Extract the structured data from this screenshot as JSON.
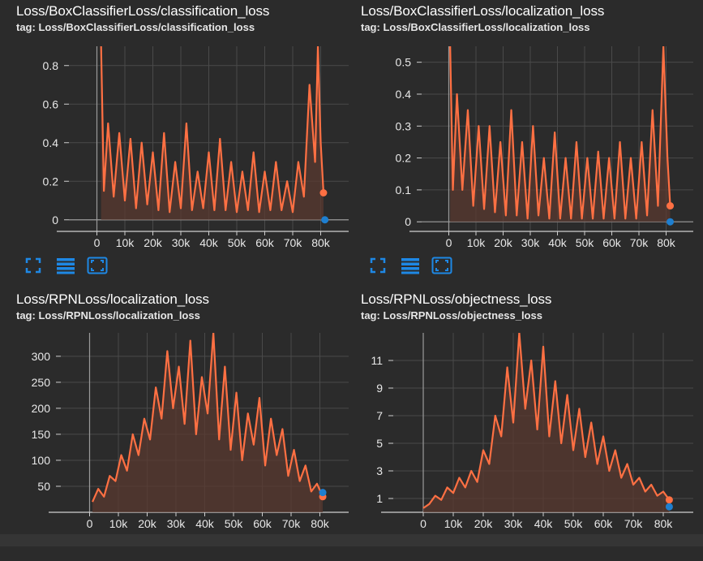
{
  "colors": {
    "background": "#2b2b2b",
    "series_smoothed": "#ff7043",
    "series_raw": "#5a3a30",
    "last_point_blue": "#1e7fd0",
    "grid": "#4a4a4a",
    "axis": "#cfcfcf",
    "toolbar_icon": "#1e88e5"
  },
  "toolbar": {
    "icons": [
      "fullscreen-icon",
      "data-table-icon",
      "fit-domain-icon"
    ]
  },
  "chart_data": [
    {
      "type": "line",
      "title": "Loss/BoxClassifierLoss/classification_loss",
      "subtitle": "tag: Loss/BoxClassifierLoss/classification_loss",
      "xlabel": "",
      "ylabel": "",
      "xlim": [
        -10000,
        90000
      ],
      "ylim": [
        -0.06,
        0.9
      ],
      "xticks": [
        0,
        10000,
        20000,
        30000,
        40000,
        50000,
        60000,
        70000,
        80000
      ],
      "xtick_labels": [
        "0",
        "10k",
        "20k",
        "30k",
        "40k",
        "50k",
        "60k",
        "70k",
        "80k"
      ],
      "yticks": [
        0,
        0.2,
        0.4,
        0.6,
        0.8
      ],
      "ytick_labels": [
        "0",
        "0.2",
        "0.4",
        "0.6",
        "0.8"
      ],
      "grid": true,
      "series": [
        {
          "x": [
            1500,
            2500,
            4000,
            6000,
            8000,
            10000,
            12000,
            14000,
            16000,
            18000,
            20000,
            22000,
            24000,
            26000,
            28000,
            30000,
            32000,
            34000,
            36000,
            38000,
            40000,
            42000,
            44000,
            46000,
            48000,
            50000,
            52000,
            54000,
            56000,
            58000,
            60000,
            62000,
            64000,
            66000,
            68000,
            70000,
            72000,
            74000,
            76000,
            78000,
            79000,
            80000,
            81000
          ],
          "y": [
            0.9,
            0.15,
            0.5,
            0.12,
            0.45,
            0.1,
            0.42,
            0.06,
            0.4,
            0.08,
            0.35,
            0.05,
            0.45,
            0.04,
            0.3,
            0.06,
            0.5,
            0.05,
            0.25,
            0.06,
            0.35,
            0.05,
            0.42,
            0.05,
            0.3,
            0.04,
            0.25,
            0.05,
            0.35,
            0.04,
            0.25,
            0.05,
            0.3,
            0.05,
            0.2,
            0.04,
            0.3,
            0.12,
            0.7,
            0.3,
            0.9,
            0.4,
            0.14
          ]
        },
        {
          "x": [
            81500
          ],
          "y": [
            0.0
          ]
        }
      ]
    },
    {
      "type": "line",
      "title": "Loss/BoxClassifierLoss/localization_loss",
      "subtitle": "tag: Loss/BoxClassifierLoss/localization_loss",
      "xlabel": "",
      "ylabel": "",
      "xlim": [
        -10000,
        90000
      ],
      "ylim": [
        -0.03,
        0.55
      ],
      "xticks": [
        0,
        10000,
        20000,
        30000,
        40000,
        50000,
        60000,
        70000,
        80000
      ],
      "xtick_labels": [
        "0",
        "10k",
        "20k",
        "30k",
        "40k",
        "50k",
        "60k",
        "70k",
        "80k"
      ],
      "yticks": [
        0,
        0.1,
        0.2,
        0.3,
        0.4,
        0.5
      ],
      "ytick_labels": [
        "0",
        "0.1",
        "0.2",
        "0.3",
        "0.4",
        "0.5"
      ],
      "grid": true,
      "series": [
        {
          "x": [
            500,
            1500,
            3000,
            5000,
            7000,
            9000,
            11000,
            13000,
            15000,
            17000,
            19000,
            21000,
            23000,
            25000,
            27000,
            29000,
            31000,
            33000,
            35000,
            37000,
            39000,
            41000,
            43000,
            45000,
            47000,
            49000,
            51000,
            53000,
            55000,
            57000,
            59000,
            61000,
            63000,
            65000,
            67000,
            69000,
            71000,
            73000,
            75000,
            77000,
            79000,
            80500,
            81500
          ],
          "y": [
            0.55,
            0.1,
            0.4,
            0.1,
            0.35,
            0.05,
            0.3,
            0.04,
            0.3,
            0.03,
            0.25,
            0.02,
            0.35,
            0.02,
            0.25,
            0.01,
            0.3,
            0.02,
            0.2,
            0.01,
            0.28,
            0.01,
            0.2,
            0.01,
            0.25,
            0.01,
            0.2,
            0.01,
            0.22,
            0.01,
            0.2,
            0.01,
            0.25,
            0.01,
            0.2,
            0.01,
            0.25,
            0.02,
            0.35,
            0.05,
            0.55,
            0.2,
            0.05
          ]
        },
        {
          "x": [
            81500
          ],
          "y": [
            0.0
          ]
        }
      ]
    },
    {
      "type": "line",
      "title": "Loss/RPNLoss/localization_loss",
      "subtitle": "tag: Loss/RPNLoss/localization_loss",
      "xlabel": "",
      "ylabel": "",
      "xlim": [
        -10000,
        90000
      ],
      "ylim": [
        0,
        345
      ],
      "xticks": [
        0,
        10000,
        20000,
        30000,
        40000,
        50000,
        60000,
        70000,
        80000
      ],
      "xtick_labels": [
        "0",
        "10k",
        "20k",
        "30k",
        "40k",
        "50k",
        "60k",
        "70k",
        "80k"
      ],
      "yticks": [
        50,
        100,
        150,
        200,
        250,
        300
      ],
      "ytick_labels": [
        "50",
        "100",
        "150",
        "200",
        "250",
        "300"
      ],
      "grid": true,
      "series": [
        {
          "x": [
            1000,
            3000,
            5000,
            7000,
            9000,
            11000,
            13000,
            15000,
            17000,
            19000,
            21000,
            23000,
            25000,
            27000,
            29000,
            31000,
            33000,
            35000,
            37000,
            39000,
            41000,
            43000,
            45000,
            47000,
            49000,
            51000,
            53000,
            55000,
            57000,
            59000,
            61000,
            63000,
            65000,
            67000,
            69000,
            71000,
            73000,
            75000,
            77000,
            79000,
            81000
          ],
          "y": [
            20,
            45,
            30,
            70,
            60,
            110,
            80,
            150,
            110,
            180,
            140,
            240,
            180,
            310,
            200,
            280,
            170,
            330,
            150,
            260,
            190,
            345,
            140,
            280,
            120,
            230,
            100,
            190,
            130,
            220,
            90,
            180,
            110,
            160,
            70,
            120,
            60,
            90,
            40,
            55,
            30
          ]
        },
        {
          "x": [
            81000
          ],
          "y": [
            38
          ]
        }
      ]
    },
    {
      "type": "line",
      "title": "Loss/RPNLoss/objectness_loss",
      "subtitle": "tag: Loss/RPNLoss/objectness_loss",
      "xlabel": "",
      "ylabel": "",
      "xlim": [
        -10000,
        90000
      ],
      "ylim": [
        0,
        13
      ],
      "xticks": [
        0,
        10000,
        20000,
        30000,
        40000,
        50000,
        60000,
        70000,
        80000
      ],
      "xtick_labels": [
        "0",
        "10k",
        "20k",
        "30k",
        "40k",
        "50k",
        "60k",
        "70k",
        "80k"
      ],
      "yticks": [
        1,
        3,
        5,
        7,
        9,
        11
      ],
      "ytick_labels": [
        "1",
        "3",
        "5",
        "7",
        "9",
        "11"
      ],
      "grid": true,
      "series": [
        {
          "x": [
            0,
            2000,
            4000,
            6000,
            8000,
            10000,
            12000,
            14000,
            16000,
            18000,
            20000,
            22000,
            24000,
            26000,
            28000,
            30000,
            32000,
            34000,
            36000,
            38000,
            40000,
            42000,
            44000,
            46000,
            48000,
            50000,
            52000,
            54000,
            56000,
            58000,
            60000,
            62000,
            64000,
            66000,
            68000,
            70000,
            72000,
            74000,
            76000,
            78000,
            80000,
            82000
          ],
          "y": [
            0.3,
            0.6,
            1.2,
            0.9,
            1.8,
            1.4,
            2.5,
            1.8,
            3.0,
            2.2,
            4.5,
            3.5,
            7.0,
            5.5,
            10.5,
            6.5,
            13.0,
            7.5,
            11.0,
            6.0,
            12.0,
            5.5,
            9.5,
            5.0,
            8.5,
            4.5,
            7.5,
            4.0,
            6.5,
            3.5,
            5.5,
            3.0,
            4.5,
            2.5,
            3.5,
            2.0,
            2.5,
            1.5,
            2.0,
            1.2,
            1.5,
            0.9
          ]
        },
        {
          "x": [
            82000
          ],
          "y": [
            0.4
          ]
        }
      ]
    }
  ]
}
